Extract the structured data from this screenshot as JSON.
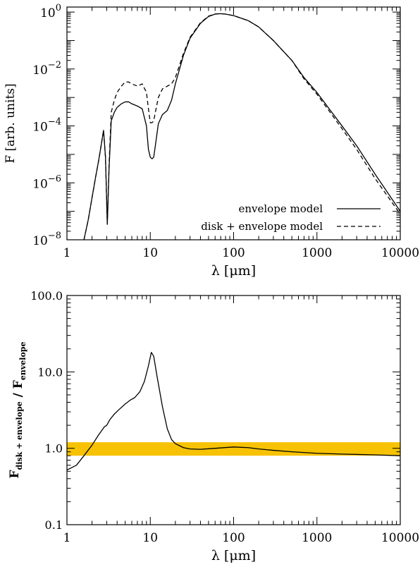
{
  "chart_data": [
    {
      "type": "line",
      "xscale": "log",
      "yscale": "log",
      "xlim": [
        1,
        10000
      ],
      "ylim": [
        1e-08,
        1.5
      ],
      "xlabel_symbol": "λ",
      "xlabel_unit": "[μm]",
      "ylabel": "F [arb. units]",
      "xticks": [
        {
          "value": 1,
          "label": "1"
        },
        {
          "value": 10,
          "label": "10"
        },
        {
          "value": 100,
          "label": "100"
        },
        {
          "value": 1000,
          "label": "1000"
        },
        {
          "value": 10000,
          "label": "10000"
        }
      ],
      "yticks": [
        {
          "value": 1e-08,
          "base": "10",
          "exp": "−8"
        },
        {
          "value": 1e-06,
          "base": "10",
          "exp": "−6"
        },
        {
          "value": 0.0001,
          "base": "10",
          "exp": "−4"
        },
        {
          "value": 0.01,
          "base": "10",
          "exp": "−2"
        },
        {
          "value": 1,
          "base": "10",
          "exp": "0"
        }
      ],
      "legend": {
        "placement": "bottom-right",
        "entries": [
          {
            "label": "envelope model",
            "style": "solid"
          },
          {
            "label": "disk + envelope model",
            "style": "dashed"
          }
        ]
      },
      "series": [
        {
          "name": "envelope model",
          "style": "solid",
          "x": [
            1.6,
            1.8,
            2.0,
            2.2,
            2.4,
            2.6,
            2.75,
            2.9,
            3.05,
            3.2,
            3.4,
            3.7,
            4.0,
            4.5,
            5.0,
            5.5,
            6.0,
            7.0,
            8.0,
            9.0,
            9.5,
            10.0,
            10.5,
            11.0,
            11.5,
            12.5,
            14,
            16,
            18,
            20,
            25,
            30,
            40,
            50,
            60,
            70,
            80,
            100,
            150,
            200,
            300,
            500,
            700,
            1000,
            2000,
            3000,
            5000,
            10000
          ],
          "y": [
            1e-08,
            5e-08,
            3e-07,
            1.5e-06,
            6e-06,
            2.5e-05,
            7e-05,
            8e-06,
            3.5e-08,
            3e-06,
            0.00015,
            0.0003,
            0.00045,
            0.0006,
            0.0007,
            0.0007,
            0.0006,
            0.0005,
            0.0004,
            0.0001,
            1.5e-05,
            8e-06,
            7e-06,
            8e-06,
            2e-05,
            0.00012,
            0.00025,
            0.00035,
            0.0008,
            0.003,
            0.03,
            0.12,
            0.4,
            0.7,
            0.85,
            0.88,
            0.85,
            0.75,
            0.5,
            0.3,
            0.1,
            0.02,
            0.005,
            0.0015,
            0.0001,
            2e-05,
            2e-06,
            1e-07
          ]
        },
        {
          "name": "disk + envelope model",
          "style": "dashed",
          "x": [
            1.6,
            1.8,
            2.0,
            2.2,
            2.4,
            2.6,
            2.75,
            2.9,
            3.05,
            3.2,
            3.4,
            3.7,
            4.0,
            4.5,
            5.0,
            5.5,
            6.0,
            7.0,
            8.0,
            9.0,
            9.5,
            10.0,
            10.5,
            11.0,
            11.5,
            12.5,
            14,
            16,
            18,
            20,
            25,
            30,
            40,
            50,
            60,
            70,
            80,
            100,
            150,
            200,
            300,
            500,
            700,
            1000,
            2000,
            3000,
            5000,
            10000
          ],
          "y": [
            1e-08,
            5e-08,
            3e-07,
            1.5e-06,
            6e-06,
            2.5e-05,
            7e-05,
            8e-06,
            3.5e-08,
            4e-06,
            0.0003,
            0.0008,
            0.0015,
            0.0025,
            0.0035,
            0.0035,
            0.003,
            0.0025,
            0.003,
            0.0015,
            0.0004,
            0.00013,
            0.00013,
            0.00015,
            0.0003,
            0.001,
            0.002,
            0.0025,
            0.003,
            0.005,
            0.035,
            0.13,
            0.42,
            0.72,
            0.86,
            0.88,
            0.85,
            0.75,
            0.5,
            0.3,
            0.1,
            0.02,
            0.0045,
            0.0013,
            8e-05,
            1.5e-05,
            1.4e-06,
            8e-08
          ]
        }
      ]
    },
    {
      "type": "line",
      "xscale": "log",
      "yscale": "log",
      "xlim": [
        1,
        10000
      ],
      "ylim": [
        0.1,
        100
      ],
      "xlabel_symbol": "λ",
      "xlabel_unit": "[μm]",
      "ylabel_parts": [
        {
          "text": "F",
          "sub": "disk + envelope"
        },
        {
          "text": " / ",
          "sub": ""
        },
        {
          "text": "F",
          "sub": "envelope"
        }
      ],
      "xticks": [
        {
          "value": 1,
          "label": "1"
        },
        {
          "value": 10,
          "label": "10"
        },
        {
          "value": 100,
          "label": "100"
        },
        {
          "value": 1000,
          "label": "1000"
        },
        {
          "value": 10000,
          "label": "10000"
        }
      ],
      "yticks": [
        {
          "value": 0.1,
          "label": "0.1"
        },
        {
          "value": 1,
          "label": "1.0"
        },
        {
          "value": 10,
          "label": "10.0"
        },
        {
          "value": 100,
          "label": "100.0"
        }
      ],
      "band": {
        "y_min": 0.8,
        "y_max": 1.2,
        "color": "#f7c204"
      },
      "series": [
        {
          "style": "solid",
          "x": [
            1.0,
            1.3,
            1.6,
            2.0,
            2.4,
            2.8,
            3.0,
            3.3,
            3.7,
            4.2,
            5.0,
            5.8,
            6.5,
            7.5,
            8.5,
            9.5,
            10.3,
            11.0,
            12.0,
            14,
            16,
            18,
            20,
            25,
            30,
            40,
            60,
            100,
            150,
            200,
            300,
            500,
            1000,
            2000,
            5000,
            10000
          ],
          "y": [
            0.52,
            0.6,
            0.8,
            1.1,
            1.5,
            1.9,
            2.0,
            2.4,
            2.8,
            3.2,
            3.8,
            4.3,
            4.6,
            5.5,
            7.5,
            12,
            18,
            16,
            9,
            3.5,
            1.8,
            1.3,
            1.15,
            1.02,
            0.98,
            0.97,
            1.0,
            1.04,
            1.02,
            0.98,
            0.94,
            0.9,
            0.86,
            0.84,
            0.82,
            0.8
          ]
        }
      ]
    }
  ]
}
